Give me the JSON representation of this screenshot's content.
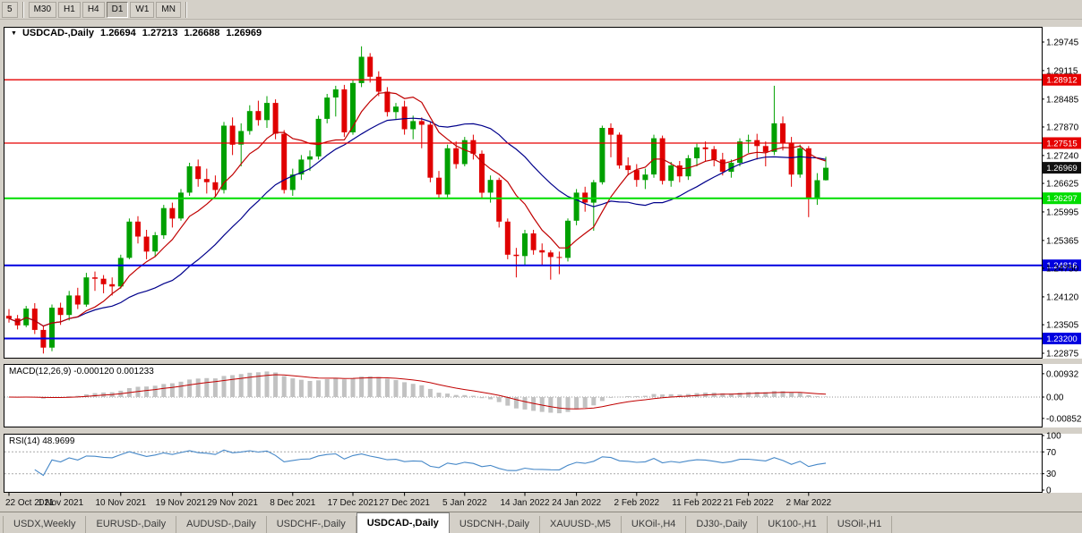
{
  "toolbar": {
    "partial": "5",
    "timeframes": [
      "M30",
      "H1",
      "H4",
      "D1",
      "W1",
      "MN"
    ],
    "active": "D1"
  },
  "chart": {
    "symbol_title": "USDCAD-,Daily",
    "open": "1.26694",
    "high": "1.27213",
    "low": "1.26688",
    "close": "1.26969",
    "collapse_icon": "▼"
  },
  "price_axis": [
    "1.29745",
    "1.29115",
    "1.28485",
    "1.27870",
    "1.27240",
    "1.26625",
    "1.25995",
    "1.25365",
    "1.24750",
    "1.24120",
    "1.23505",
    "1.22875"
  ],
  "levels": [
    {
      "price": 1.28912,
      "label": "1.28912",
      "color": "#e60000",
      "width": 1.3
    },
    {
      "price": 1.27515,
      "label": "1.27515",
      "color": "#e60000",
      "width": 1.3
    },
    {
      "price": 1.26297,
      "label": "1.26297",
      "color": "#00dd00",
      "width": 2
    },
    {
      "price": 1.24816,
      "label": "1.24816",
      "color": "#0000e0",
      "width": 2
    },
    {
      "price": 1.232,
      "label": "1.23200",
      "color": "#0000e0",
      "width": 2
    }
  ],
  "current_price": {
    "label": "1.26969",
    "price": 1.26969,
    "color": "#101010"
  },
  "macd": {
    "title": "MACD(12,26,9) -0.000120 0.001233",
    "axis": [
      "0.00932",
      "0.00",
      "-0.00852"
    ]
  },
  "rsi": {
    "title": "RSI(14) 48.9699",
    "axis": [
      "100",
      "70",
      "30",
      "0"
    ],
    "levels": [
      70,
      30
    ]
  },
  "date_ticks": [
    {
      "label": "22 Oct 2021",
      "i": 0
    },
    {
      "label": "1 Nov 2021",
      "i": 6
    },
    {
      "label": "10 Nov 2021",
      "i": 13
    },
    {
      "label": "19 Nov 2021",
      "i": 20
    },
    {
      "label": "29 Nov 2021",
      "i": 26
    },
    {
      "label": "8 Dec 2021",
      "i": 33
    },
    {
      "label": "17 Dec 2021",
      "i": 40
    },
    {
      "label": "27 Dec 2021",
      "i": 46
    },
    {
      "label": "5 Jan 2022",
      "i": 53
    },
    {
      "label": "14 Jan 2022",
      "i": 60
    },
    {
      "label": "24 Jan 2022",
      "i": 66
    },
    {
      "label": "2 Feb 2022",
      "i": 73
    },
    {
      "label": "11 Feb 2022",
      "i": 80
    },
    {
      "label": "21 Feb 2022",
      "i": 86
    },
    {
      "label": "2 Mar 2022",
      "i": 93
    }
  ],
  "chart_data": {
    "type": "candlestick",
    "symbol": "USDCAD",
    "timeframe": "Daily",
    "ohlc": [
      [
        1.237,
        1.2385,
        1.2355,
        1.2364
      ],
      [
        1.2364,
        1.2372,
        1.234,
        1.2349
      ],
      [
        1.2349,
        1.2392,
        1.2345,
        1.2386
      ],
      [
        1.2386,
        1.2398,
        1.233,
        1.2339
      ],
      [
        1.2339,
        1.2348,
        1.2287,
        1.23
      ],
      [
        1.23,
        1.2395,
        1.2292,
        1.2388
      ],
      [
        1.2388,
        1.2399,
        1.235,
        1.2372
      ],
      [
        1.2372,
        1.2425,
        1.236,
        1.2415
      ],
      [
        1.2415,
        1.2432,
        1.2385,
        1.2395
      ],
      [
        1.2395,
        1.2465,
        1.239,
        1.2455
      ],
      [
        1.2455,
        1.2468,
        1.2425,
        1.2452
      ],
      [
        1.2452,
        1.246,
        1.242,
        1.244
      ],
      [
        1.244,
        1.2455,
        1.2415,
        1.2435
      ],
      [
        1.2435,
        1.2505,
        1.243,
        1.2498
      ],
      [
        1.2498,
        1.2585,
        1.2495,
        1.2578
      ],
      [
        1.2578,
        1.259,
        1.253,
        1.2545
      ],
      [
        1.2545,
        1.256,
        1.2495,
        1.2512
      ],
      [
        1.2512,
        1.2555,
        1.25,
        1.2548
      ],
      [
        1.2548,
        1.2615,
        1.254,
        1.2608
      ],
      [
        1.2608,
        1.262,
        1.2565,
        1.2585
      ],
      [
        1.2585,
        1.265,
        1.258,
        1.2642
      ],
      [
        1.2642,
        1.2708,
        1.2635,
        1.27
      ],
      [
        1.27,
        1.2715,
        1.2655,
        1.2672
      ],
      [
        1.2672,
        1.2695,
        1.264,
        1.2665
      ],
      [
        1.2665,
        1.268,
        1.2635,
        1.2648
      ],
      [
        1.2648,
        1.2798,
        1.264,
        1.279
      ],
      [
        1.279,
        1.2808,
        1.2725,
        1.2748
      ],
      [
        1.2748,
        1.2795,
        1.27,
        1.2778
      ],
      [
        1.2778,
        1.2835,
        1.277,
        1.2822
      ],
      [
        1.2822,
        1.2845,
        1.279,
        1.2802
      ],
      [
        1.2802,
        1.2855,
        1.2785,
        1.284
      ],
      [
        1.284,
        1.2848,
        1.276,
        1.2772
      ],
      [
        1.2772,
        1.278,
        1.264,
        1.2648
      ],
      [
        1.2648,
        1.2695,
        1.2635,
        1.2682
      ],
      [
        1.2682,
        1.2725,
        1.267,
        1.2715
      ],
      [
        1.2715,
        1.2735,
        1.269,
        1.2722
      ],
      [
        1.2722,
        1.2812,
        1.2715,
        1.2805
      ],
      [
        1.2805,
        1.286,
        1.2795,
        1.2852
      ],
      [
        1.2852,
        1.2878,
        1.281,
        1.287
      ],
      [
        1.287,
        1.288,
        1.2765,
        1.2775
      ],
      [
        1.2775,
        1.289,
        1.277,
        1.2884
      ],
      [
        1.2884,
        1.2965,
        1.2875,
        1.2942
      ],
      [
        1.2942,
        1.295,
        1.2885,
        1.2898
      ],
      [
        1.2898,
        1.291,
        1.2855,
        1.2865
      ],
      [
        1.2865,
        1.2875,
        1.281,
        1.282
      ],
      [
        1.282,
        1.284,
        1.2805,
        1.2832
      ],
      [
        1.2832,
        1.2845,
        1.277,
        1.2782
      ],
      [
        1.2782,
        1.2812,
        1.276,
        1.28
      ],
      [
        1.28,
        1.2808,
        1.274,
        1.2792
      ],
      [
        1.2792,
        1.2798,
        1.2665,
        1.2675
      ],
      [
        1.2675,
        1.269,
        1.263,
        1.2638
      ],
      [
        1.2638,
        1.2748,
        1.2632,
        1.274
      ],
      [
        1.274,
        1.2755,
        1.2695,
        1.2705
      ],
      [
        1.2705,
        1.2765,
        1.27,
        1.2758
      ],
      [
        1.2758,
        1.277,
        1.2715,
        1.2728
      ],
      [
        1.2728,
        1.2735,
        1.263,
        1.2642
      ],
      [
        1.2642,
        1.268,
        1.262,
        1.267
      ],
      [
        1.267,
        1.2675,
        1.2565,
        1.2578
      ],
      [
        1.2578,
        1.2585,
        1.2495,
        1.2505
      ],
      [
        1.2505,
        1.252,
        1.2455,
        1.2502
      ],
      [
        1.2502,
        1.256,
        1.248,
        1.2552
      ],
      [
        1.2552,
        1.256,
        1.2505,
        1.2515
      ],
      [
        1.2515,
        1.253,
        1.248,
        1.251
      ],
      [
        1.251,
        1.2515,
        1.245,
        1.25
      ],
      [
        1.25,
        1.2512,
        1.2462,
        1.2498
      ],
      [
        1.2498,
        1.2585,
        1.249,
        1.258
      ],
      [
        1.258,
        1.265,
        1.257,
        1.2642
      ],
      [
        1.2642,
        1.2655,
        1.26,
        1.262
      ],
      [
        1.262,
        1.267,
        1.2558,
        1.2665
      ],
      [
        1.2665,
        1.279,
        1.266,
        1.2785
      ],
      [
        1.2785,
        1.2795,
        1.272,
        1.277
      ],
      [
        1.277,
        1.2775,
        1.2695,
        1.2702
      ],
      [
        1.2702,
        1.272,
        1.268,
        1.2692
      ],
      [
        1.2692,
        1.2705,
        1.2655,
        1.267
      ],
      [
        1.267,
        1.2695,
        1.265,
        1.2682
      ],
      [
        1.2682,
        1.277,
        1.2675,
        1.2762
      ],
      [
        1.2762,
        1.2768,
        1.266,
        1.2668
      ],
      [
        1.2668,
        1.271,
        1.2655,
        1.2702
      ],
      [
        1.2702,
        1.2712,
        1.2665,
        1.2678
      ],
      [
        1.2678,
        1.2725,
        1.267,
        1.2718
      ],
      [
        1.2718,
        1.275,
        1.27,
        1.2742
      ],
      [
        1.2742,
        1.2755,
        1.271,
        1.2738
      ],
      [
        1.2738,
        1.2745,
        1.27,
        1.2715
      ],
      [
        1.2715,
        1.273,
        1.268,
        1.2688
      ],
      [
        1.2688,
        1.2715,
        1.2675,
        1.2708
      ],
      [
        1.2708,
        1.2762,
        1.27,
        1.2755
      ],
      [
        1.2755,
        1.277,
        1.273,
        1.2758
      ],
      [
        1.2758,
        1.2772,
        1.2715,
        1.2745
      ],
      [
        1.2745,
        1.2755,
        1.27,
        1.2732
      ],
      [
        1.2732,
        1.2878,
        1.2725,
        1.2795
      ],
      [
        1.2795,
        1.281,
        1.2735,
        1.2752
      ],
      [
        1.2752,
        1.2765,
        1.2655,
        1.2682
      ],
      [
        1.2682,
        1.2748,
        1.2675,
        1.274
      ],
      [
        1.274,
        1.2745,
        1.2588,
        1.2628
      ],
      [
        1.2628,
        1.2685,
        1.2615,
        1.26694
      ],
      [
        1.26694,
        1.27213,
        1.26688,
        1.26969
      ]
    ]
  },
  "tabs": {
    "items": [
      "USDX,Weekly",
      "EURUSD-,Daily",
      "AUDUSD-,Daily",
      "USDCHF-,Daily",
      "USDCAD-,Daily",
      "USDCNH-,Daily",
      "XAUUSD-,M5",
      "UKOil-,H4",
      "DJ30-,Daily",
      "UK100-,H1",
      "USOil-,H1"
    ],
    "active_index": 4
  },
  "colors": {
    "up": "#00a000",
    "down": "#e00000",
    "ma_fast": "#c00000",
    "ma_slow": "#00008b",
    "macd_hist": "#c2c2c2",
    "macd_signal": "#c00000",
    "rsi_line": "#4688c8",
    "pane_bg": "#ffffff",
    "window_bg": "#d4d0c8"
  }
}
